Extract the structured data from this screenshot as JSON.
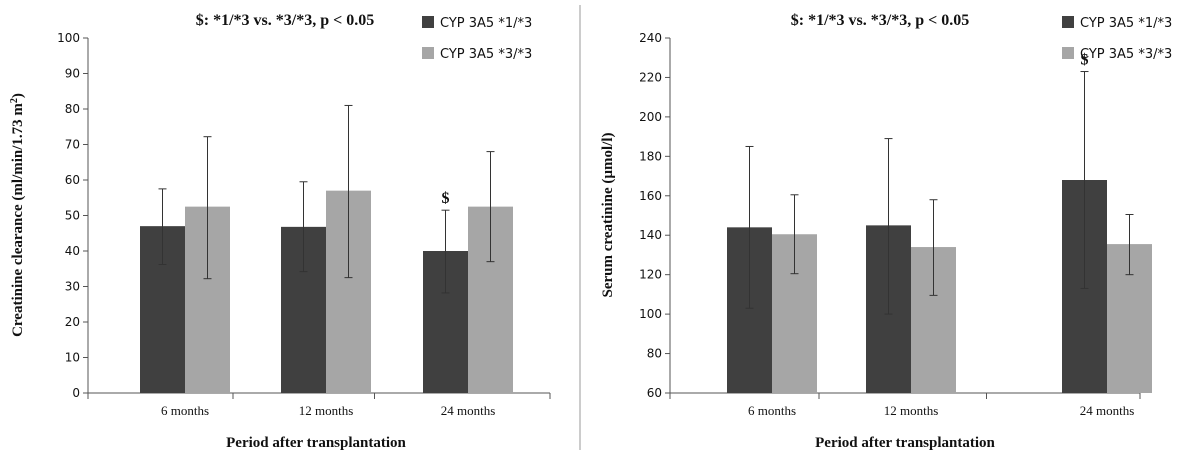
{
  "colors": {
    "series1": "#404040",
    "series2": "#a6a6a6",
    "axis": "#555555",
    "text": "#111111"
  },
  "chart_data": [
    {
      "type": "bar",
      "annotation": "$: *1/*3 vs. *3/*3, p < 0.05",
      "xlabel": "Period after transplantation",
      "ylabel": "Creatinine clearance (ml/min/1.73 m",
      "ylabel_sup": "2",
      "ylabel_tail": ")",
      "ylim": [
        0,
        100
      ],
      "yticks": [
        0,
        10,
        20,
        30,
        40,
        50,
        60,
        70,
        80,
        90,
        100
      ],
      "categories": [
        "6 months",
        "12 months",
        "24 months"
      ],
      "legend_position": "top-right",
      "grid": false,
      "series": [
        {
          "name": "CYP 3A5 *1/*3",
          "values": [
            47,
            46.8,
            40
          ],
          "err_low": [
            36.2,
            34.2,
            28.2
          ],
          "err_high": [
            57.5,
            59.5,
            51.5
          ],
          "marks": [
            "",
            "",
            "$"
          ]
        },
        {
          "name": "CYP 3A5 *3/*3",
          "values": [
            52.5,
            57,
            52.5
          ],
          "err_low": [
            32.2,
            32.5,
            37
          ],
          "err_high": [
            72.2,
            81,
            68
          ],
          "marks": [
            "",
            "",
            ""
          ]
        }
      ]
    },
    {
      "type": "bar",
      "annotation": "$: *1/*3 vs. *3/*3, p < 0.05",
      "xlabel": "Period after transplantation",
      "ylabel": "Serum creatinine (µmol/l)",
      "ylabel_sup": "",
      "ylabel_tail": "",
      "ylim": [
        60,
        240
      ],
      "yticks": [
        60,
        80,
        100,
        120,
        140,
        160,
        180,
        200,
        220,
        240
      ],
      "categories": [
        "6 months",
        "12 months",
        "24 months"
      ],
      "legend_position": "top-right",
      "grid": false,
      "series": [
        {
          "name": "CYP 3A5 *1/*3",
          "values": [
            144,
            145,
            168
          ],
          "err_low": [
            103,
            100,
            113
          ],
          "err_high": [
            185,
            189,
            223
          ],
          "marks": [
            "",
            "",
            "$"
          ]
        },
        {
          "name": "CYP 3A5 *3/*3",
          "values": [
            140.5,
            134,
            135.5
          ],
          "err_low": [
            120.5,
            109.5,
            120
          ],
          "err_high": [
            160.5,
            158,
            150.5
          ],
          "marks": [
            "",
            "",
            ""
          ]
        }
      ]
    }
  ]
}
